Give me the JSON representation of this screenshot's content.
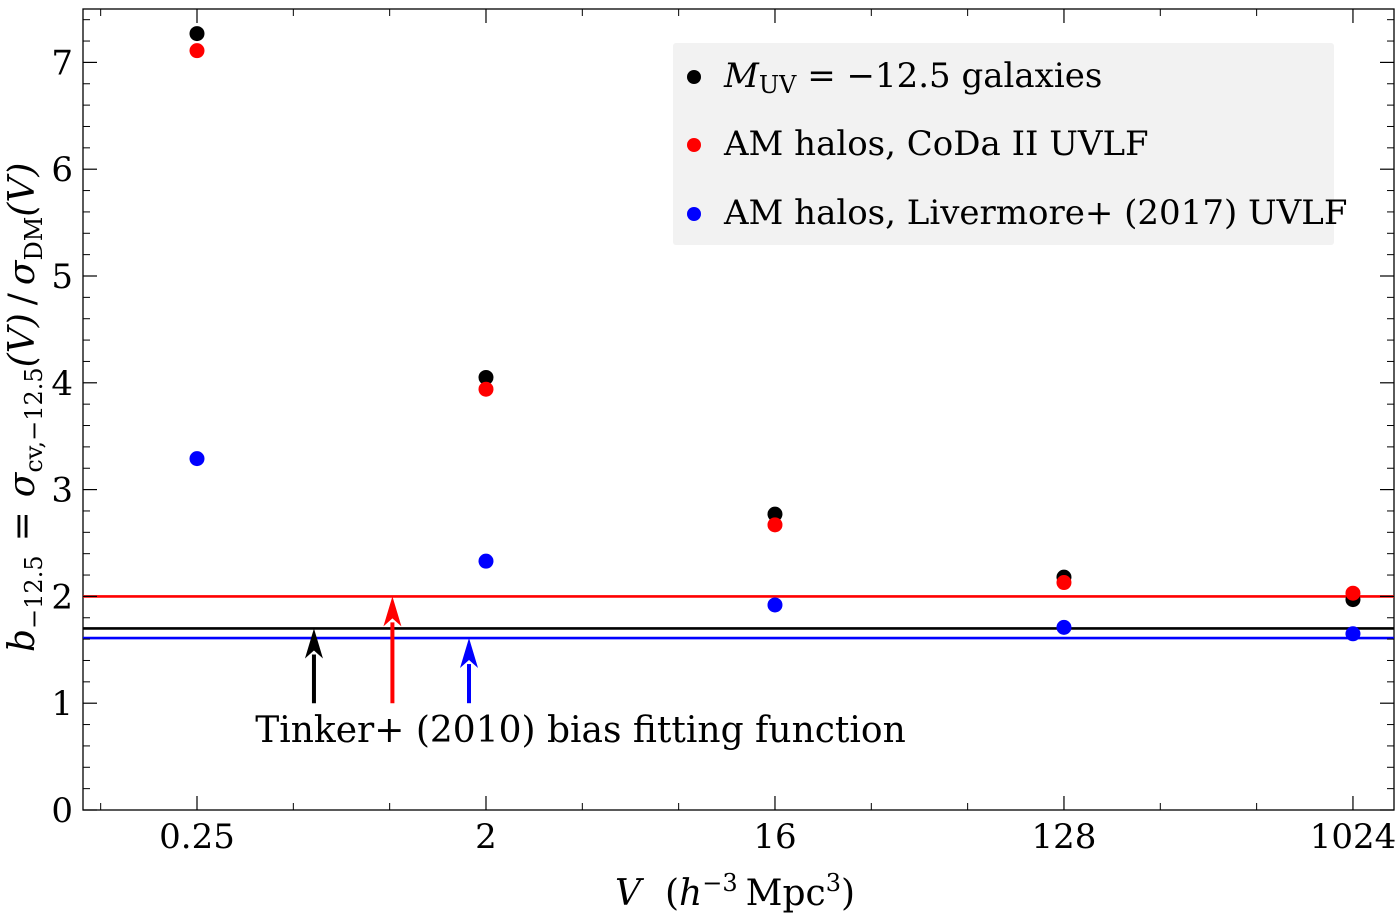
{
  "chart_data": {
    "type": "scatter",
    "title": "",
    "xlabel": {
      "V": "V",
      "open": "(",
      "h": "h",
      "h_exp": "−3",
      "mpc": "Mpc",
      "mpc_exp": "3",
      "close": ")"
    },
    "ylabel": {
      "b": "b",
      "b_sub": "−12.5",
      "eq": "=",
      "sigma1": "σ",
      "sigma1_sub": "cv,−12.5",
      "arg1": "(V)",
      "slash": "/",
      "sigma2": "σ",
      "sigma2_sub": "DM",
      "arg2": "(V)"
    },
    "x_scale": "log2",
    "xlim": [
      0.11,
      1100
    ],
    "ylim": [
      0,
      7.5
    ],
    "x_ticks": [
      0.25,
      2,
      16,
      128,
      1024
    ],
    "x_tick_labels": [
      "0.25",
      "2",
      "16",
      "128",
      "1024"
    ],
    "y_ticks": [
      0,
      1,
      2,
      3,
      4,
      5,
      6,
      7
    ],
    "y_tick_labels": [
      "0",
      "1",
      "2",
      "3",
      "4",
      "5",
      "6",
      "7"
    ],
    "x": [
      0.25,
      2,
      16,
      128,
      1024
    ],
    "series": [
      {
        "name": "M_UV = −12.5 galaxies",
        "color": "#000000",
        "values": [
          7.27,
          4.05,
          2.77,
          2.18,
          1.97
        ]
      },
      {
        "name": "AM halos, CoDa II UVLF",
        "color": "#ff0000",
        "values": [
          7.11,
          3.94,
          2.67,
          2.13,
          2.03
        ]
      },
      {
        "name": "AM halos, Livermore+ (2017) UVLF",
        "color": "#0000ff",
        "values": [
          3.29,
          2.33,
          1.92,
          1.71,
          1.65
        ]
      }
    ],
    "reference_lines": [
      {
        "name": "Tinker+ (2010) black",
        "color": "#000000",
        "y": 1.7
      },
      {
        "name": "Tinker+ (2010) red",
        "color": "#ff0000",
        "y": 2.0
      },
      {
        "name": "Tinker+ (2010) blue",
        "color": "#0000ff",
        "y": 1.61
      }
    ],
    "arrows": [
      {
        "color": "#000000",
        "x": 0.58,
        "from": 1.0,
        "to": 1.7
      },
      {
        "color": "#ff0000",
        "x": 1.02,
        "from": 1.0,
        "to": 2.0
      },
      {
        "color": "#0000ff",
        "x": 1.77,
        "from": 1.0,
        "to": 1.61
      }
    ],
    "annotation": {
      "text": "Tinker+ (2010) bias fitting function",
      "x": 0.38,
      "y": 0.75
    },
    "legend": {
      "placement": "top-right",
      "entries": [
        {
          "color": "#000000",
          "M": "M",
          "M_sub": "UV",
          "rest": " = −12.5 galaxies"
        },
        {
          "color": "#ff0000",
          "label": "AM halos, CoDa II UVLF"
        },
        {
          "color": "#0000ff",
          "label": "AM halos, Livermore+ (2017) UVLF"
        }
      ]
    },
    "grid": false
  }
}
